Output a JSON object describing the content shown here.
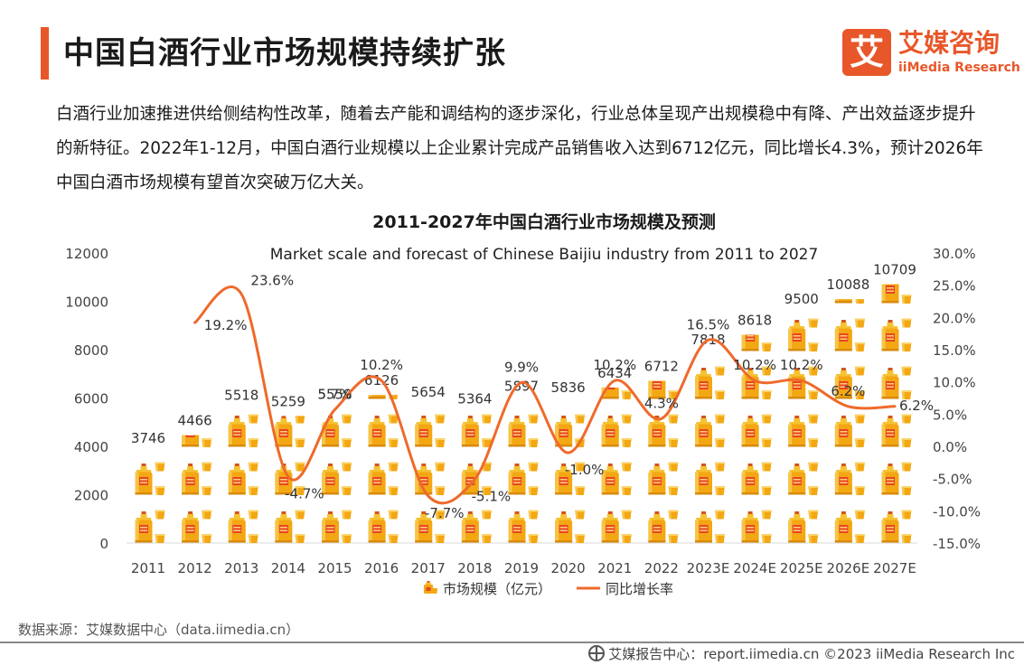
{
  "header": {
    "title": "中国白酒行业市场规模持续扩张",
    "accent_color": "#e8572a"
  },
  "brand": {
    "logo_glyph": "艾",
    "name_cn": "艾媒咨询",
    "name_en": "iiMedia Research",
    "color": "#e8572a"
  },
  "intro": {
    "text": "白酒行业加速推进供给侧结构性改革，随着去产能和调结构的逐步深化，行业总体呈现产出规模稳中有降、产出效益逐步提升的新特征。2022年1-12月，中国白酒行业规模以上企业累计完成产品销售收入达到6712亿元，同比增长4.3%，预计2026年中国白酒市场规模有望首次突破万亿大关。"
  },
  "chart_data": {
    "type": "bar",
    "title": "2011-2027年中国白酒行业市场规模及预测",
    "subtitle": "Market scale and forecast of Chinese Baijiu industry from 2011 to 2027",
    "categories": [
      "2011",
      "2012",
      "2013",
      "2014",
      "2015",
      "2016",
      "2017",
      "2018",
      "2019",
      "2020",
      "2021",
      "2022",
      "2023E",
      "2024E",
      "2025E",
      "2026E",
      "2027E"
    ],
    "series": [
      {
        "name": "市场规模（亿元）",
        "type": "bar",
        "axis": "left",
        "values": [
          3746,
          4466,
          5518,
          5259,
          5559,
          6126,
          5654,
          5364,
          5897,
          5836,
          6434,
          6712,
          7818,
          8618,
          9500,
          10088,
          10709
        ],
        "labels": [
          "3746",
          "4466",
          "5518",
          "5259",
          "5559",
          "6126",
          "5654",
          "5364",
          "5897",
          "5836",
          "6434",
          "6712",
          "7818",
          "8618",
          "9500",
          "10088",
          "10709"
        ],
        "color": "#f5b21a"
      },
      {
        "name": "同比增长率",
        "type": "line",
        "axis": "right",
        "values": [
          null,
          19.2,
          23.6,
          -4.7,
          5.7,
          10.2,
          -7.7,
          -5.1,
          9.9,
          -1.0,
          10.2,
          4.3,
          16.5,
          10.2,
          10.2,
          6.2,
          6.2
        ],
        "labels": [
          "",
          "19.2%",
          "23.6%",
          "-4.7%",
          "5.7%",
          "10.2%",
          "-7.7%",
          "-5.1%",
          "9.9%",
          "-1.0%",
          "10.2%",
          "4.3%",
          "16.5%",
          "10.2%",
          "10.2%",
          "6.2%",
          "6.2%"
        ],
        "color": "#ee6a2b"
      }
    ],
    "y_left": {
      "min": 0,
      "max": 12000,
      "ticks": [
        "0",
        "2000",
        "4000",
        "6000",
        "8000",
        "10000",
        "12000"
      ]
    },
    "y_right": {
      "min": -15,
      "max": 30,
      "ticks": [
        "-15.0%",
        "-10.0%",
        "-5.0%",
        "0.0%",
        "5.0%",
        "10.0%",
        "15.0%",
        "20.0%",
        "25.0%",
        "30.0%"
      ]
    },
    "legend_position": "bottom",
    "grid": false,
    "label_red_color": "#e03a1e"
  },
  "source": {
    "text": "数据来源：艾媒数据中心（data.iimedia.cn）"
  },
  "footer": {
    "text": "艾媒报告中心：report.iimedia.cn  ©2023  iiMedia Research  Inc"
  }
}
